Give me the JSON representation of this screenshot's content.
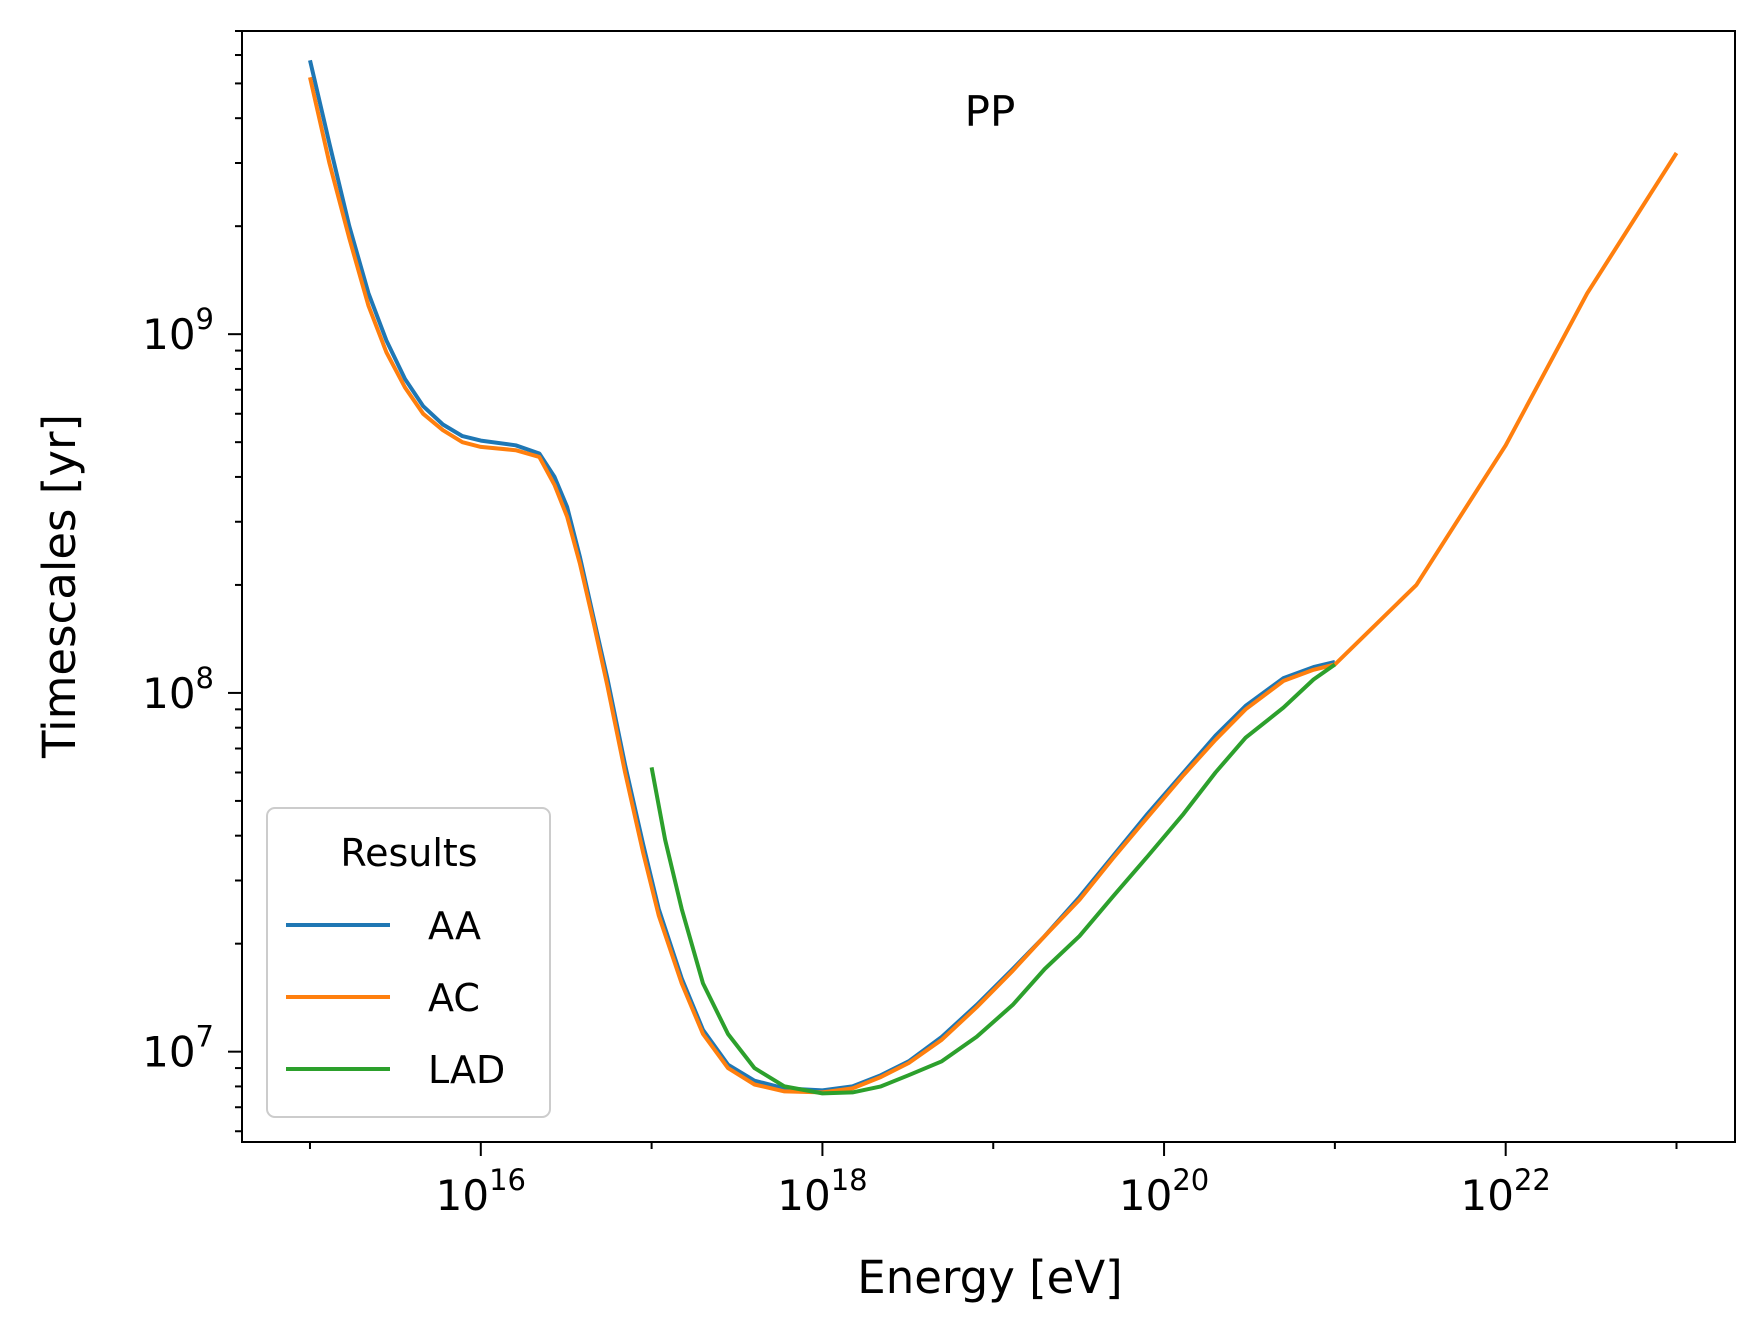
{
  "chart_data": {
    "type": "line",
    "xlabel": "Energy [eV]",
    "ylabel": "Timescales [yr]",
    "annotation": "PP",
    "xscale": "log",
    "yscale": "log",
    "xlim": [
      400000000000000.0,
      2.2e+23
    ],
    "ylim": [
      5600000.0,
      7000000000.0
    ],
    "xticks": [
      {
        "value": 1e+16,
        "base": "10",
        "exp": "16"
      },
      {
        "value": 1e+18,
        "base": "10",
        "exp": "18"
      },
      {
        "value": 1e+20,
        "base": "10",
        "exp": "20"
      },
      {
        "value": 1e+22,
        "base": "10",
        "exp": "22"
      }
    ],
    "yticks": [
      {
        "value": 10000000.0,
        "base": "10",
        "exp": "7"
      },
      {
        "value": 100000000.0,
        "base": "10",
        "exp": "8"
      },
      {
        "value": 1000000000.0,
        "base": "10",
        "exp": "9"
      }
    ],
    "grid": false,
    "legend": {
      "title": "Results",
      "position": "lower-left"
    },
    "series": [
      {
        "name": "AA",
        "color": "#1f77b4",
        "x": [
          1000000000000000.0,
          1300000000000000.0,
          1700000000000000.0,
          2200000000000000.0,
          2800000000000000.0,
          3600000000000000.0,
          4600000000000000.0,
          6000000000000000.0,
          7800000000000000.0,
          1e+16,
          1.6e+16,
          2.2e+16,
          2.7e+16,
          3.2e+16,
          3.8e+16,
          4.6e+16,
          5.5e+16,
          7e+16,
          8.9e+16,
          1.1e+17,
          1.5e+17,
          2e+17,
          2.8e+17,
          4e+17,
          6e+17,
          1e+18,
          1.5e+18,
          2.2e+18,
          3.2e+18,
          5e+18,
          8e+18,
          1.3e+19,
          2e+19,
          3.2e+19,
          5e+19,
          8e+19,
          1.3e+20,
          2e+20,
          3e+20,
          5e+20,
          7.5e+20,
          1e+21
        ],
        "y": [
          5800000000.0,
          3400000000.0,
          2000000000.0,
          1300000000.0,
          960000000.0,
          750000000.0,
          630000000.0,
          560000000.0,
          520000000.0,
          505000000.0,
          490000000.0,
          465000000.0,
          400000000.0,
          330000000.0,
          240000000.0,
          160000000.0,
          110000000.0,
          63000000.0,
          38000000.0,
          25000000.0,
          16000000.0,
          11500000.0,
          9200000.0,
          8300000.0,
          7900000.0,
          7800000.0,
          8000000.0,
          8600000.0,
          9400000.0,
          11000000.0,
          13500000.0,
          17000000.0,
          21000000.0,
          27000000.0,
          35000000.0,
          46000000.0,
          60000000.0,
          76000000.0,
          92000000.0,
          110000000.0,
          118000000.0,
          122000000.0
        ]
      },
      {
        "name": "AC",
        "color": "#ff7f0e",
        "x": [
          1000000000000000.0,
          1300000000000000.0,
          1700000000000000.0,
          2200000000000000.0,
          2800000000000000.0,
          3600000000000000.0,
          4600000000000000.0,
          6000000000000000.0,
          7800000000000000.0,
          1e+16,
          1.6e+16,
          2.2e+16,
          2.7e+16,
          3.2e+16,
          3.8e+16,
          4.6e+16,
          5.5e+16,
          7e+16,
          8.9e+16,
          1.1e+17,
          1.5e+17,
          2e+17,
          2.8e+17,
          4e+17,
          6e+17,
          1e+18,
          1.5e+18,
          2.2e+18,
          3.2e+18,
          5e+18,
          8e+18,
          1.3e+19,
          2e+19,
          3.2e+19,
          5e+19,
          8e+19,
          1.3e+20,
          2e+20,
          3e+20,
          5e+20,
          7.5e+20,
          1e+21,
          3e+21,
          1e+22,
          3e+22,
          1e+23
        ],
        "y": [
          5200000000.0,
          3000000000.0,
          1850000000.0,
          1200000000.0,
          890000000.0,
          710000000.0,
          600000000.0,
          540000000.0,
          500000000.0,
          485000000.0,
          475000000.0,
          455000000.0,
          380000000.0,
          310000000.0,
          230000000.0,
          155000000.0,
          105000000.0,
          60000000.0,
          36000000.0,
          24000000.0,
          15500000.0,
          11200000.0,
          9000000.0,
          8100000.0,
          7750000.0,
          7700000.0,
          7900000.0,
          8500000.0,
          9300000.0,
          10800000.0,
          13300000.0,
          16800000.0,
          21000000.0,
          26500000.0,
          34500000.0,
          45000000.0,
          59000000.0,
          74000000.0,
          90000000.0,
          108000000.0,
          116000000.0,
          120000000.0,
          200000000.0,
          490000000.0,
          1300000000.0,
          3200000000.0
        ]
      },
      {
        "name": "LAD",
        "color": "#2ca02c",
        "x": [
          1e+17,
          1.2e+17,
          1.5e+17,
          2e+17,
          2.8e+17,
          4e+17,
          6e+17,
          1e+18,
          1.5e+18,
          2.2e+18,
          3.2e+18,
          5e+18,
          8e+18,
          1.3e+19,
          2e+19,
          3.2e+19,
          5e+19,
          8e+19,
          1.3e+20,
          2e+20,
          3e+20,
          5e+20,
          7.5e+20,
          1e+21
        ],
        "y": [
          62000000.0,
          39000000.0,
          25000000.0,
          15500000.0,
          11200000.0,
          9000000.0,
          8000000.0,
          7650000.0,
          7700000.0,
          8000000.0,
          8600000.0,
          9400000.0,
          11000000.0,
          13500000.0,
          17000000.0,
          21000000.0,
          27000000.0,
          35000000.0,
          46000000.0,
          60000000.0,
          75000000.0,
          91000000.0,
          109000000.0,
          120000000.0
        ]
      }
    ]
  }
}
